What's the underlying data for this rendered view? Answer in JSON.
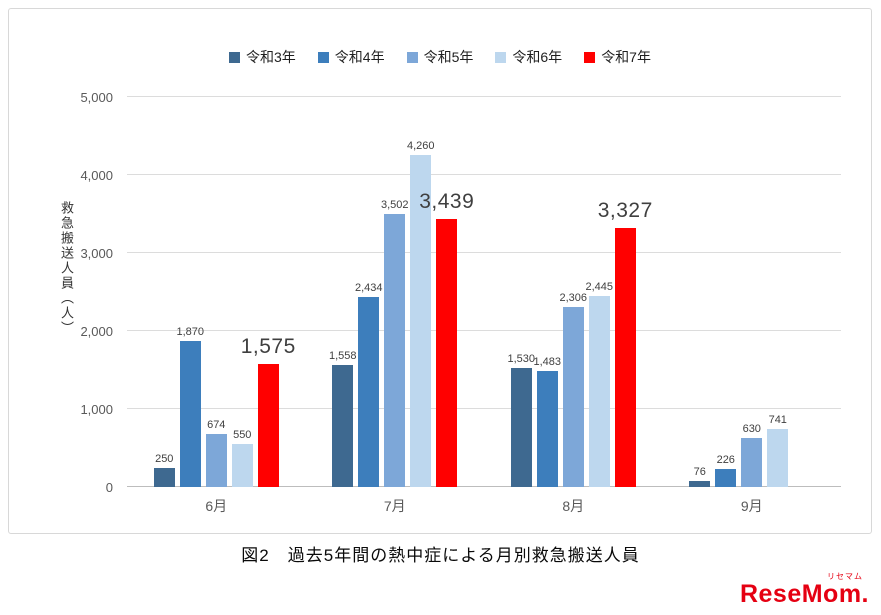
{
  "chart_data": {
    "type": "bar",
    "title": "",
    "categories": [
      "6月",
      "7月",
      "8月",
      "9月"
    ],
    "series": [
      {
        "name": "令和3年",
        "color": "#3e6990",
        "values": [
          250,
          1558,
          1530,
          76
        ]
      },
      {
        "name": "令和4年",
        "color": "#3d7ebc",
        "values": [
          1870,
          2434,
          1483,
          226
        ]
      },
      {
        "name": "令和5年",
        "color": "#7da7d8",
        "values": [
          674,
          3502,
          2306,
          630
        ]
      },
      {
        "name": "令和6年",
        "color": "#bdd7ee",
        "values": [
          550,
          4260,
          2445,
          741
        ]
      },
      {
        "name": "令和7年",
        "color": "#ff0000",
        "values": [
          1575,
          3439,
          3327,
          null
        ],
        "emphasis": true
      }
    ],
    "ylabel": "救急搬送人員（人）",
    "xlabel": "",
    "ylim": [
      0,
      5000
    ],
    "ytick_step": 1000,
    "yticks": [
      "0",
      "1,000",
      "2,000",
      "3,000",
      "4,000",
      "5,000"
    ],
    "grid": "horizontal",
    "legend_position": "top-center",
    "value_labels": true
  },
  "caption": "図2　過去5年間の熱中症による月別救急搬送人員",
  "logo": {
    "sub": "リセマム",
    "main": "ReseMom."
  }
}
